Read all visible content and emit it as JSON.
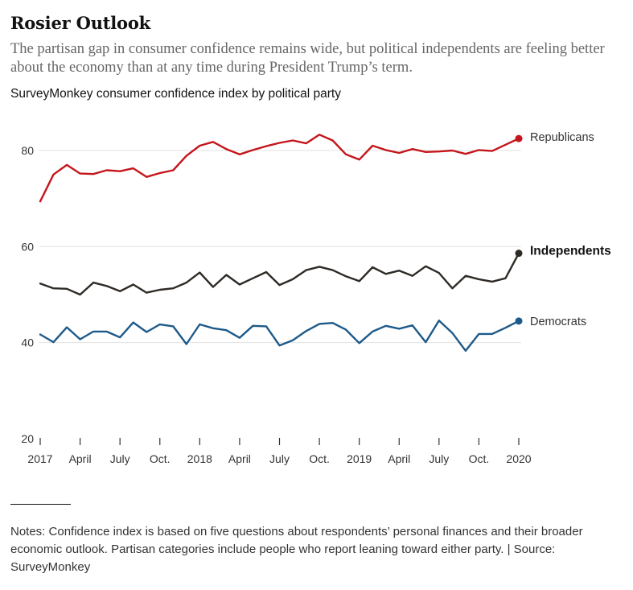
{
  "header": {
    "title": "Rosier Outlook",
    "subtitle": "The partisan gap in consumer confidence remains wide, but political independents are feeling better about the economy than at any time during President Trump’s term."
  },
  "chart_label": "SurveyMonkey consumer confidence index by political party",
  "notes": "Notes: Confidence index is based on five questions about respondents’ personal finances and their broader economic outlook. Partisan categories include people who report leaning toward either party. | Source: SurveyMonkey",
  "chart_data": {
    "type": "line",
    "title": "SurveyMonkey consumer confidence index by political party",
    "xlabel": "",
    "ylabel": "",
    "ylim": [
      20,
      90
    ],
    "yticks": [
      20,
      40,
      60,
      80
    ],
    "grid": true,
    "x_tick_labels": [
      "2017",
      "April",
      "July",
      "Oct.",
      "2018",
      "April",
      "July",
      "Oct.",
      "2019",
      "April",
      "July",
      "Oct.",
      "2020"
    ],
    "x_tick_index": [
      0,
      3,
      6,
      9,
      12,
      15,
      18,
      21,
      24,
      27,
      30,
      33,
      36
    ],
    "series": [
      {
        "name": "Republicans",
        "color": "#c4161c",
        "label_bold": false,
        "values": [
          69.4,
          75.0,
          77.0,
          75.2,
          75.1,
          75.9,
          75.7,
          76.3,
          74.5,
          75.3,
          75.9,
          78.9,
          81.0,
          81.8,
          80.3,
          79.2,
          80.1,
          80.9,
          81.6,
          82.1,
          81.5,
          83.3,
          82.1,
          79.2,
          78.1,
          81.0,
          80.1,
          79.5,
          80.3,
          79.7,
          79.8,
          80.0,
          79.3,
          80.1,
          79.9,
          81.2,
          82.5
        ]
      },
      {
        "name": "Independents",
        "color": "#2e2a25",
        "label_bold": true,
        "values": [
          52.3,
          51.3,
          51.2,
          50.0,
          52.5,
          51.8,
          50.7,
          52.1,
          50.4,
          51.0,
          51.3,
          52.5,
          54.6,
          51.6,
          54.1,
          52.1,
          53.4,
          54.7,
          52.0,
          53.2,
          55.1,
          55.8,
          55.1,
          53.8,
          52.8,
          55.7,
          54.3,
          55.0,
          53.9,
          55.9,
          54.5,
          51.3,
          53.9,
          53.2,
          52.7,
          53.4,
          58.6
        ]
      },
      {
        "name": "Democrats",
        "color": "#1d5a8a",
        "label_bold": false,
        "values": [
          41.7,
          40.1,
          43.2,
          40.7,
          42.3,
          42.3,
          41.1,
          44.2,
          42.2,
          43.8,
          43.4,
          39.7,
          43.8,
          43.0,
          42.6,
          41.0,
          43.5,
          43.4,
          39.4,
          40.5,
          42.4,
          43.9,
          44.1,
          42.7,
          39.9,
          42.3,
          43.5,
          42.9,
          43.6,
          40.1,
          44.6,
          42.0,
          38.3,
          41.8,
          41.8,
          43.1,
          44.5
        ]
      }
    ]
  }
}
